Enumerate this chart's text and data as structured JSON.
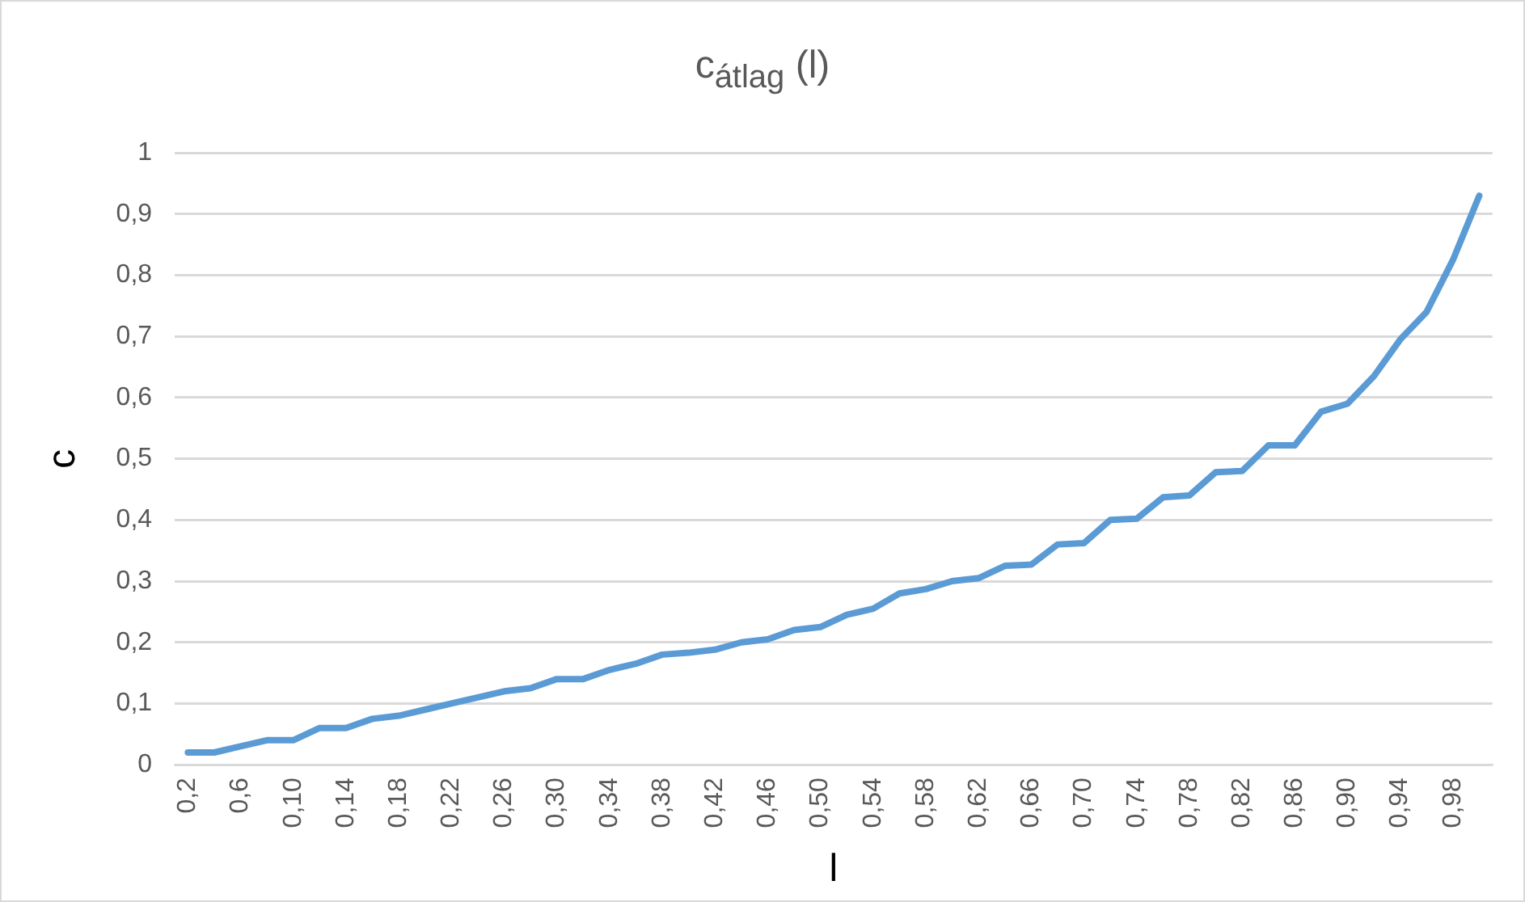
{
  "chart_data": {
    "type": "line",
    "title": "c$_{átlag}$ (l)",
    "xlabel": "l",
    "ylabel": "c",
    "categories": [
      "0,2",
      null,
      "0,6",
      null,
      "0,10",
      null,
      "0,14",
      null,
      "0,18",
      null,
      "0,22",
      null,
      "0,26",
      null,
      "0,30",
      null,
      "0,34",
      null,
      "0,38",
      null,
      "0,42",
      null,
      "0,46",
      null,
      "0,50",
      null,
      "0,54",
      null,
      "0,58",
      null,
      "0,62",
      null,
      "0,66",
      null,
      "0,70",
      null,
      "0,74",
      null,
      "0,78",
      null,
      "0,82",
      null,
      "0,86",
      null,
      "0,90",
      null,
      "0,94",
      null,
      "0,98",
      null
    ],
    "series": [
      {
        "color": "#5b9bd5",
        "values": [
          0.02,
          0.02,
          0.03,
          0.04,
          0.04,
          0.06,
          0.06,
          0.075,
          0.08,
          0.09,
          0.1,
          0.11,
          0.12,
          0.125,
          0.14,
          0.14,
          0.155,
          0.165,
          0.18,
          0.183,
          0.188,
          0.2,
          0.205,
          0.22,
          0.225,
          0.245,
          0.255,
          0.28,
          0.287,
          0.3,
          0.305,
          0.325,
          0.327,
          0.36,
          0.362,
          0.4,
          0.402,
          0.437,
          0.44,
          0.478,
          0.48,
          0.522,
          0.522,
          0.577,
          0.59,
          0.635,
          0.695,
          0.74,
          0.825,
          0.93
        ]
      }
    ],
    "ylim": [
      0,
      1
    ],
    "yticks": [
      0,
      {
        "value": 0.1,
        "label": "0,1"
      },
      {
        "value": 0.2,
        "label": "0,2"
      },
      {
        "value": 0.3,
        "label": "0,3"
      },
      {
        "value": 0.4,
        "label": "0,4"
      },
      {
        "value": 0.5,
        "label": "0,5"
      },
      {
        "value": 0.6,
        "label": "0,6"
      },
      {
        "value": 0.7,
        "label": "0,7"
      },
      {
        "value": 0.8,
        "label": "0,8"
      },
      {
        "value": 0.9,
        "label": "0,9"
      },
      1
    ],
    "grid": "y",
    "legend": false,
    "marker": "none",
    "line_style": "solid"
  }
}
